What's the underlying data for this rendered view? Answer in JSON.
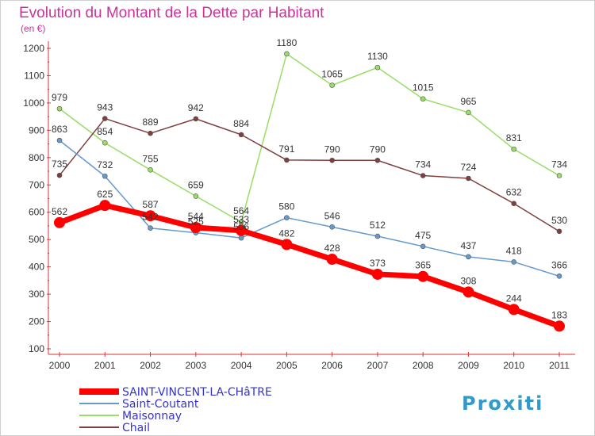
{
  "chart_data": {
    "type": "line",
    "title": "Evolution du Montant de la Dette par Habitant",
    "subtitle": "(en €)",
    "xlabel": "",
    "ylabel": "",
    "categories": [
      "2000",
      "2001",
      "2002",
      "2003",
      "2004",
      "2005",
      "2006",
      "2007",
      "2008",
      "2009",
      "2010",
      "2011"
    ],
    "ylim": [
      100,
      1200
    ],
    "yticks": [
      100,
      200,
      300,
      400,
      500,
      600,
      700,
      800,
      900,
      1000,
      1100,
      1200
    ],
    "grid": false,
    "legend_position": "bottom-left",
    "series": [
      {
        "name": "SAINT-VINCENT-LA-CHâTRE",
        "color": "#ff0000",
        "values": [
          562,
          625,
          587,
          544,
          533,
          482,
          428,
          373,
          365,
          308,
          244,
          183
        ]
      },
      {
        "name": "Saint-Coutant",
        "color": "#6699cc",
        "values": [
          863,
          732,
          542,
          525,
          506,
          580,
          546,
          512,
          475,
          437,
          418,
          366
        ]
      },
      {
        "name": "Maisonnay",
        "color": "#99dd66",
        "values": [
          979,
          854,
          755,
          659,
          564,
          1180,
          1065,
          1130,
          1015,
          965,
          831,
          734
        ]
      },
      {
        "name": "Chail",
        "color": "#7f3f3f",
        "values": [
          735,
          943,
          889,
          942,
          884,
          791,
          790,
          790,
          734,
          724,
          632,
          530
        ]
      }
    ],
    "title_color": "#cc3399",
    "axis_color": "#dd3333"
  },
  "logo": {
    "text": "Proxiti"
  }
}
